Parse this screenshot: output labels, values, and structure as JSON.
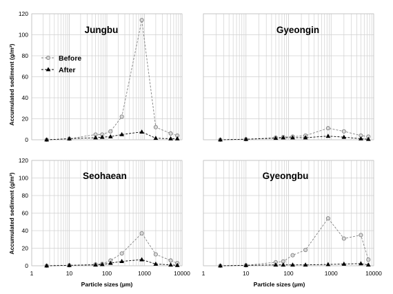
{
  "figure": {
    "y_axis_label": "Accumulated sediment (g/m²)",
    "x_axis_label": "Particle sizes (μm)"
  },
  "colors": {
    "before": "#808080",
    "before_fill": "#d9d9d9",
    "after": "#000000",
    "grid": "#d0d0d0"
  },
  "chart_data": [
    {
      "type": "line",
      "title": "Jungbu",
      "xscale": "log",
      "xlim": [
        1,
        10000
      ],
      "ylim": [
        0,
        120
      ],
      "x_ticks": [
        "1",
        "10",
        "100",
        "1000",
        "10000"
      ],
      "y_ticks": [
        0,
        20,
        40,
        60,
        80,
        100,
        120
      ],
      "legend_position": "top-left",
      "x": [
        2.5,
        10,
        50,
        75,
        125,
        250,
        850,
        2000,
        5000,
        7500
      ],
      "series": [
        {
          "name": "Before",
          "values": [
            0,
            1,
            5,
            5,
            8,
            22,
            114,
            12,
            6,
            4
          ]
        },
        {
          "name": "After",
          "values": [
            0,
            1,
            2,
            2.5,
            3,
            5,
            7.5,
            1.5,
            1,
            1
          ]
        }
      ]
    },
    {
      "type": "line",
      "title": "Gyeongin",
      "xscale": "log",
      "xlim": [
        1,
        10000
      ],
      "ylim": [
        0,
        120
      ],
      "x_ticks": [
        "1",
        "10",
        "100",
        "1000",
        "10000"
      ],
      "y_ticks": [
        0,
        20,
        40,
        60,
        80,
        100,
        120
      ],
      "x": [
        2.5,
        10,
        50,
        75,
        125,
        250,
        850,
        2000,
        5000,
        7500
      ],
      "series": [
        {
          "name": "Before",
          "values": [
            0,
            0.5,
            2,
            2.5,
            3,
            4,
            11,
            8,
            4,
            3
          ]
        },
        {
          "name": "After",
          "values": [
            0,
            0.5,
            1.5,
            2,
            2,
            2,
            3.5,
            2.5,
            1,
            0.5
          ]
        }
      ]
    },
    {
      "type": "line",
      "title": "Seohaean",
      "xscale": "log",
      "xlim": [
        1,
        10000
      ],
      "ylim": [
        0,
        120
      ],
      "x_ticks": [
        "1",
        "10",
        "100",
        "1000",
        "10000"
      ],
      "y_ticks": [
        0,
        20,
        40,
        60,
        80,
        100,
        120
      ],
      "x": [
        2.5,
        10,
        50,
        75,
        125,
        250,
        850,
        2000,
        5000,
        7500
      ],
      "series": [
        {
          "name": "Before",
          "values": [
            0,
            0.5,
            1.5,
            2,
            6,
            14,
            37,
            13,
            6,
            3
          ]
        },
        {
          "name": "After",
          "values": [
            0,
            0.5,
            1,
            1.5,
            3,
            5,
            7,
            2,
            1,
            0.5
          ]
        }
      ]
    },
    {
      "type": "line",
      "title": "Gyeongbu",
      "xscale": "log",
      "xlim": [
        1,
        10000
      ],
      "ylim": [
        0,
        120
      ],
      "x_ticks": [
        "1",
        "10",
        "100",
        "1000",
        "10000"
      ],
      "y_ticks": [
        0,
        20,
        40,
        60,
        80,
        100,
        120
      ],
      "x": [
        2.5,
        10,
        50,
        75,
        125,
        250,
        850,
        2000,
        5000,
        7500
      ],
      "series": [
        {
          "name": "Before",
          "values": [
            0,
            0.5,
            4,
            5,
            12,
            18,
            54,
            31,
            35,
            7
          ]
        },
        {
          "name": "After",
          "values": [
            0,
            0.5,
            1,
            1,
            1,
            1,
            1.5,
            2,
            2.5,
            1
          ]
        }
      ]
    }
  ]
}
